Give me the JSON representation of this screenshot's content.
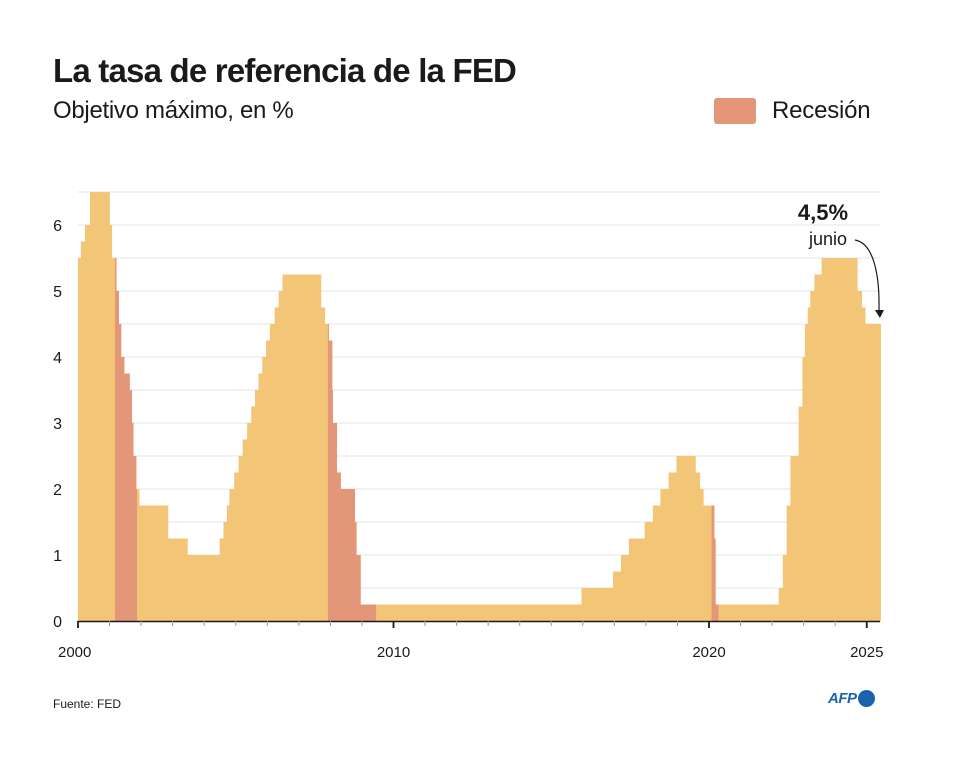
{
  "header": {
    "title": "La tasa de referencia de la FED",
    "subtitle": "Objetivo máximo, en %"
  },
  "legend": {
    "recession_label": "Recesión",
    "recession_color": "#e39678"
  },
  "footer": {
    "source": "Fuente: FED",
    "logo_text": "AFP"
  },
  "colors": {
    "rate": "#f3c677",
    "recession": "#e39678",
    "grid": "#e6e6e6",
    "axis": "#1a1a1a",
    "logo": "#1a62b0"
  },
  "chart_data": {
    "type": "area",
    "step": true,
    "title": "La tasa de referencia de la FED",
    "subtitle": "Objetivo máximo, en %",
    "xlabel": "",
    "ylabel": "",
    "xlim": [
      2000.0,
      2025.45
    ],
    "ylim": [
      0,
      6.5
    ],
    "grid": true,
    "grid_step": 0.5,
    "yticks": [
      0,
      1,
      2,
      3,
      4,
      5,
      6
    ],
    "xtick_labels": [
      {
        "x": 2000,
        "label": "2000"
      },
      {
        "x": 2010,
        "label": "2010"
      },
      {
        "x": 2020,
        "label": "2020"
      },
      {
        "x": 2025,
        "label": "2025"
      }
    ],
    "xtick_minor_step": 1,
    "legend": {
      "entries": [
        "Recesión"
      ],
      "position": "top-right"
    },
    "recessions": [
      {
        "start": 2001.17,
        "end": 2001.87
      },
      {
        "start": 2007.92,
        "end": 2009.45
      },
      {
        "start": 2020.08,
        "end": 2020.3
      }
    ],
    "series": [
      {
        "name": "Objetivo máximo",
        "points": [
          [
            2000.0,
            5.5
          ],
          [
            2000.09,
            5.75
          ],
          [
            2000.22,
            6.0
          ],
          [
            2000.38,
            6.5
          ],
          [
            2001.01,
            6.0
          ],
          [
            2001.08,
            5.5
          ],
          [
            2001.22,
            5.0
          ],
          [
            2001.3,
            4.5
          ],
          [
            2001.37,
            4.0
          ],
          [
            2001.47,
            3.75
          ],
          [
            2001.64,
            3.5
          ],
          [
            2001.71,
            3.0
          ],
          [
            2001.76,
            2.5
          ],
          [
            2001.85,
            2.0
          ],
          [
            2001.95,
            1.75
          ],
          [
            2002.86,
            1.25
          ],
          [
            2003.48,
            1.0
          ],
          [
            2004.49,
            1.25
          ],
          [
            2004.61,
            1.5
          ],
          [
            2004.72,
            1.75
          ],
          [
            2004.8,
            2.0
          ],
          [
            2004.95,
            2.25
          ],
          [
            2005.09,
            2.5
          ],
          [
            2005.22,
            2.75
          ],
          [
            2005.36,
            3.0
          ],
          [
            2005.49,
            3.25
          ],
          [
            2005.61,
            3.5
          ],
          [
            2005.72,
            3.75
          ],
          [
            2005.84,
            4.0
          ],
          [
            2005.96,
            4.25
          ],
          [
            2006.08,
            4.5
          ],
          [
            2006.23,
            4.75
          ],
          [
            2006.36,
            5.0
          ],
          [
            2006.48,
            5.25
          ],
          [
            2007.71,
            4.75
          ],
          [
            2007.83,
            4.5
          ],
          [
            2007.95,
            4.25
          ],
          [
            2008.06,
            3.5
          ],
          [
            2008.08,
            3.0
          ],
          [
            2008.21,
            2.25
          ],
          [
            2008.33,
            2.0
          ],
          [
            2008.78,
            1.5
          ],
          [
            2008.83,
            1.0
          ],
          [
            2008.96,
            0.25
          ],
          [
            2015.96,
            0.5
          ],
          [
            2016.96,
            0.75
          ],
          [
            2017.21,
            1.0
          ],
          [
            2017.46,
            1.25
          ],
          [
            2017.96,
            1.5
          ],
          [
            2018.22,
            1.75
          ],
          [
            2018.46,
            2.0
          ],
          [
            2018.72,
            2.25
          ],
          [
            2018.97,
            2.5
          ],
          [
            2019.58,
            2.25
          ],
          [
            2019.72,
            2.0
          ],
          [
            2019.83,
            1.75
          ],
          [
            2020.17,
            1.25
          ],
          [
            2020.21,
            0.25
          ],
          [
            2022.21,
            0.5
          ],
          [
            2022.34,
            1.0
          ],
          [
            2022.46,
            1.75
          ],
          [
            2022.58,
            2.5
          ],
          [
            2022.84,
            3.25
          ],
          [
            2022.96,
            4.0
          ],
          [
            2023.04,
            4.5
          ],
          [
            2023.13,
            4.75
          ],
          [
            2023.21,
            5.0
          ],
          [
            2023.34,
            5.25
          ],
          [
            2023.57,
            5.5
          ],
          [
            2024.71,
            5.0
          ],
          [
            2024.85,
            4.75
          ],
          [
            2024.96,
            4.5
          ],
          [
            2025.45,
            4.5
          ]
        ]
      }
    ],
    "annotations": [
      {
        "text": "4,5%",
        "subtext": "junio",
        "x": 2025.45,
        "y": 4.5,
        "arrow": true
      }
    ]
  }
}
